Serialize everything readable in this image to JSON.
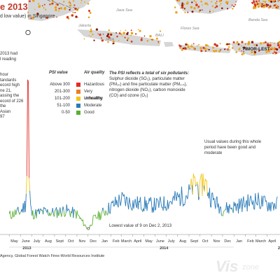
{
  "header": {
    "title": "e 2013",
    "subtitle": "d low value) in Singapore"
  },
  "map": {
    "labels": [
      "Jakarta",
      "Java Sea",
      "JAVA",
      "BALI",
      "Flores Sea",
      "Banda Sea",
      "TIMOR-LEST"
    ]
  },
  "side_notes": {
    "note_1": "2013 had\nl reading",
    "note_2": "hour\ntandards\necord high\nne 21,\nassing the\necord of 226\nthe\nAsian\n97"
  },
  "legend": {
    "range_header": "PSI value",
    "quality_header": "Air quality",
    "rows": [
      {
        "range": "Above 300",
        "quality": "Hazardous",
        "color": "#e32b23"
      },
      {
        "range": "201-300",
        "quality": "Very unhealthy",
        "color": "#f07c1e"
      },
      {
        "range": "101-200",
        "quality": "Unhealthy",
        "color": "#f5c518"
      },
      {
        "range": "51-100",
        "quality": "Moderate",
        "color": "#2b7bb9"
      },
      {
        "range": "0-50",
        "quality": "Good",
        "color": "#5ab031"
      }
    ]
  },
  "pollutant_note": {
    "heading": "The PSI reflects a total of six pollutants:",
    "body": "Sulphur dioxide (SO₂), particulate matter (PM₁₀) and fine particulate matter (PM₂.₅), nitrogen dioxide (NO₂), carbon monoxide (CO) and ozone (O₃)"
  },
  "annotations": {
    "usual": "Usual values during this whole period have been good and moderate",
    "lowest": "Lowest value of 9 on Dec 2, 2013"
  },
  "source": "Agency, Global Forest Watch Fires-World Resources Institute",
  "watermark": {
    "vis": "Vis",
    "zone": "zone"
  },
  "chart_data": {
    "type": "line",
    "title": "",
    "xlabel": "",
    "ylabel": "",
    "ylim": [
      0,
      410
    ],
    "x_ticks": [
      "May",
      "June",
      "July",
      "Aug",
      "Sept",
      "Oct",
      "Nov",
      "Dec",
      "Jan",
      "Feb",
      "March",
      "April",
      "May",
      "June",
      "July",
      "Aug",
      "Sept",
      "Oct",
      "Nov",
      "Dec",
      "Jan",
      "Feb",
      "March",
      "April"
    ],
    "year_labels": [
      "2013",
      "2014"
    ],
    "grid": false,
    "series": [
      {
        "values": [
          {
            "x": "2013-05",
            "y": 38
          },
          {
            "x": "2013-05-15",
            "y": 42
          },
          {
            "x": "2013-06",
            "y": 45
          },
          {
            "x": "2013-06-14",
            "y": 60
          },
          {
            "x": "2013-06-18",
            "y": 120
          },
          {
            "x": "2013-06-21",
            "y": 401
          },
          {
            "x": "2013-06-24",
            "y": 110
          },
          {
            "x": "2013-06-28",
            "y": 55
          },
          {
            "x": "2013-07",
            "y": 40
          },
          {
            "x": "2013-08",
            "y": 45
          },
          {
            "x": "2013-09",
            "y": 43
          },
          {
            "x": "2013-10",
            "y": 48
          },
          {
            "x": "2013-11",
            "y": 40
          },
          {
            "x": "2013-12-02",
            "y": 9
          },
          {
            "x": "2013-12-15",
            "y": 30
          },
          {
            "x": "2014-01",
            "y": 38
          },
          {
            "x": "2014-02",
            "y": 55
          },
          {
            "x": "2014-03",
            "y": 70
          },
          {
            "x": "2014-04",
            "y": 62
          },
          {
            "x": "2014-05",
            "y": 60
          },
          {
            "x": "2014-06",
            "y": 58
          },
          {
            "x": "2014-07",
            "y": 62
          },
          {
            "x": "2014-08",
            "y": 72
          },
          {
            "x": "2014-09",
            "y": 82
          },
          {
            "x": "2014-09-20",
            "y": 105
          },
          {
            "x": "2014-10",
            "y": 85
          },
          {
            "x": "2014-10-10",
            "y": 110
          },
          {
            "x": "2014-11",
            "y": 72
          },
          {
            "x": "2014-12",
            "y": 50
          },
          {
            "x": "2015-01",
            "y": 55
          },
          {
            "x": "2015-02",
            "y": 62
          },
          {
            "x": "2015-03",
            "y": 68
          },
          {
            "x": "2015-04",
            "y": 60
          }
        ]
      }
    ]
  }
}
